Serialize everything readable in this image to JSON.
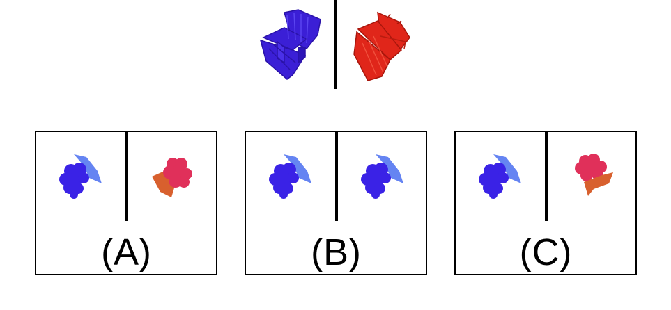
{
  "prompt": {
    "left_object": {
      "icon": "chair-icon",
      "color": "#3b1fd6"
    },
    "right_object": {
      "icon": "chair-icon",
      "color": "#e0261a"
    }
  },
  "options": [
    {
      "label": "(A)",
      "left": {
        "icon": "grapes-icon",
        "color": "#3a22e6"
      },
      "right": {
        "icon": "grapes-icon",
        "color": "#e0305a"
      }
    },
    {
      "label": "(B)",
      "left": {
        "icon": "grapes-icon",
        "color": "#3a22e6"
      },
      "right": {
        "icon": "grapes-icon",
        "color": "#3a22e6"
      }
    },
    {
      "label": "(C)",
      "left": {
        "icon": "grapes-icon",
        "color": "#3a22e6"
      },
      "right": {
        "icon": "grapes-icon",
        "color": "#e0305a"
      }
    }
  ]
}
